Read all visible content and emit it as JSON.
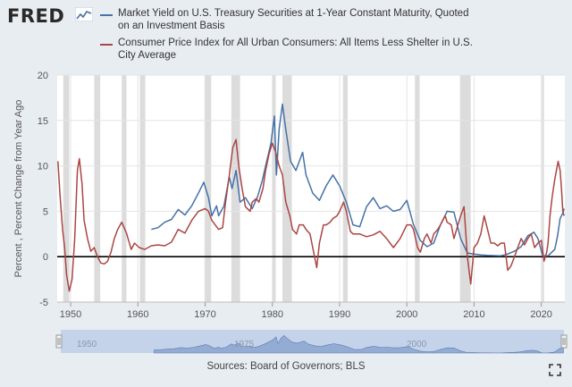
{
  "brand": {
    "logo_text": "FRED"
  },
  "colors": {
    "background": "#e8edf2",
    "blue": "#4572a7",
    "red": "#aa4643",
    "recession": "#dcdcdc",
    "navigator": "#c4d3ea"
  },
  "legend": [
    {
      "name": "Market Yield on U.S. Treasury Securities at 1-Year Constant Maturity, Quoted on an Investment Basis",
      "color": "#4572a7"
    },
    {
      "name": "Consumer Price Index for All Urban Consumers: All Items Less Shelter in U.S. City Average",
      "color": "#aa4643"
    }
  ],
  "footer": {
    "sources": "Sources: Board of Governors; BLS"
  },
  "navigator": {
    "tick_labels": [
      "1950",
      "1975",
      "2000"
    ]
  },
  "chart_data": {
    "type": "line",
    "ylabel": "Percent , Percent Change from Year Ago",
    "xlabel": "",
    "xlim": [
      1948,
      2023.5
    ],
    "ylim": [
      -5,
      20
    ],
    "y_ticks": [
      -5,
      0,
      5,
      10,
      15,
      20
    ],
    "x_ticks": [
      1950,
      1960,
      1970,
      1980,
      1990,
      2000,
      2010,
      2020
    ],
    "x_tick_labels": [
      "1950",
      "1960",
      "1970",
      "1980",
      "1990",
      "2000",
      "2010",
      "2020"
    ],
    "y_tick_labels": [
      "-5",
      "0",
      "5",
      "10",
      "15",
      "20"
    ],
    "grid": true,
    "legend_position": "top",
    "recessions": [
      [
        1948.9,
        1949.8
      ],
      [
        1953.5,
        1954.4
      ],
      [
        1957.6,
        1958.3
      ],
      [
        1960.3,
        1961.1
      ],
      [
        1969.9,
        1970.9
      ],
      [
        1973.9,
        1975.2
      ],
      [
        1980.0,
        1980.5
      ],
      [
        1981.5,
        1982.9
      ],
      [
        1990.5,
        1991.2
      ],
      [
        2001.2,
        2001.9
      ],
      [
        2007.9,
        2009.5
      ],
      [
        2020.1,
        2020.4
      ]
    ],
    "series": [
      {
        "name": "Market Yield on U.S. Treasury Securities at 1-Year Constant Maturity, Quoted on an Investment Basis",
        "color": "#4572a7",
        "points": [
          [
            1962,
            3.0
          ],
          [
            1963,
            3.2
          ],
          [
            1964,
            3.8
          ],
          [
            1965,
            4.1
          ],
          [
            1966,
            5.2
          ],
          [
            1967,
            4.6
          ],
          [
            1968,
            5.6
          ],
          [
            1969,
            7.0
          ],
          [
            1969.8,
            8.2
          ],
          [
            1970.5,
            6.5
          ],
          [
            1971,
            4.5
          ],
          [
            1971.7,
            5.6
          ],
          [
            1972,
            4.5
          ],
          [
            1972.8,
            5.6
          ],
          [
            1973.6,
            8.8
          ],
          [
            1974,
            7.5
          ],
          [
            1974.6,
            9.5
          ],
          [
            1975.2,
            6.0
          ],
          [
            1976,
            6.5
          ],
          [
            1977,
            5.3
          ],
          [
            1977.8,
            6.6
          ],
          [
            1978.5,
            8.4
          ],
          [
            1979,
            10.0
          ],
          [
            1979.8,
            12.5
          ],
          [
            1980.3,
            15.5
          ],
          [
            1980.6,
            9.0
          ],
          [
            1981,
            14.0
          ],
          [
            1981.5,
            16.8
          ],
          [
            1982,
            14.0
          ],
          [
            1982.7,
            10.5
          ],
          [
            1983.5,
            9.5
          ],
          [
            1984.5,
            11.5
          ],
          [
            1985,
            9.0
          ],
          [
            1986,
            7.0
          ],
          [
            1987,
            6.2
          ],
          [
            1988,
            7.8
          ],
          [
            1989,
            9.0
          ],
          [
            1990,
            7.8
          ],
          [
            1991,
            6.0
          ],
          [
            1992,
            3.5
          ],
          [
            1993,
            3.3
          ],
          [
            1994,
            5.5
          ],
          [
            1995,
            6.5
          ],
          [
            1996,
            5.3
          ],
          [
            1997,
            5.6
          ],
          [
            1998,
            5.0
          ],
          [
            1999,
            5.2
          ],
          [
            2000,
            6.2
          ],
          [
            2001,
            3.5
          ],
          [
            2002,
            1.8
          ],
          [
            2003,
            1.1
          ],
          [
            2004,
            1.5
          ],
          [
            2005,
            3.5
          ],
          [
            2006,
            5.0
          ],
          [
            2007,
            4.9
          ],
          [
            2008,
            2.0
          ],
          [
            2009,
            0.4
          ],
          [
            2010,
            0.3
          ],
          [
            2011,
            0.2
          ],
          [
            2012,
            0.15
          ],
          [
            2013,
            0.12
          ],
          [
            2014,
            0.1
          ],
          [
            2015,
            0.3
          ],
          [
            2016,
            0.6
          ],
          [
            2017,
            1.1
          ],
          [
            2018,
            2.3
          ],
          [
            2018.9,
            2.7
          ],
          [
            2019.5,
            2.0
          ],
          [
            2020.2,
            0.1
          ],
          [
            2021,
            0.1
          ],
          [
            2022,
            0.8
          ],
          [
            2022.4,
            2.2
          ],
          [
            2022.8,
            4.2
          ],
          [
            2023.2,
            4.8
          ],
          [
            2023.4,
            5.3
          ]
        ]
      },
      {
        "name": "Consumer Price Index for All Urban Consumers: All Items Less Shelter in U.S. City Average",
        "color": "#aa4643",
        "points": [
          [
            1948.1,
            10.5
          ],
          [
            1948.4,
            7.0
          ],
          [
            1948.8,
            3.0
          ],
          [
            1949.1,
            1.0
          ],
          [
            1949.4,
            -2.0
          ],
          [
            1949.8,
            -3.8
          ],
          [
            1950.2,
            -2.5
          ],
          [
            1950.6,
            2.0
          ],
          [
            1951.0,
            9.5
          ],
          [
            1951.3,
            10.8
          ],
          [
            1951.7,
            8.0
          ],
          [
            1952.0,
            4.0
          ],
          [
            1952.5,
            2.0
          ],
          [
            1953.0,
            0.6
          ],
          [
            1953.5,
            1.0
          ],
          [
            1954.0,
            0.0
          ],
          [
            1954.5,
            -0.7
          ],
          [
            1955.0,
            -0.8
          ],
          [
            1955.5,
            -0.5
          ],
          [
            1956.0,
            0.5
          ],
          [
            1956.5,
            2.0
          ],
          [
            1957.0,
            3.0
          ],
          [
            1957.6,
            3.8
          ],
          [
            1958.3,
            2.6
          ],
          [
            1959.0,
            0.8
          ],
          [
            1959.5,
            1.5
          ],
          [
            1960.2,
            1.0
          ],
          [
            1961.0,
            0.8
          ],
          [
            1962.0,
            1.2
          ],
          [
            1963.0,
            1.3
          ],
          [
            1964.0,
            1.2
          ],
          [
            1965.0,
            1.6
          ],
          [
            1966.0,
            3.0
          ],
          [
            1967.0,
            2.6
          ],
          [
            1968.0,
            4.0
          ],
          [
            1969.0,
            5.0
          ],
          [
            1970.0,
            5.3
          ],
          [
            1970.5,
            5.0
          ],
          [
            1971.0,
            4.0
          ],
          [
            1972.0,
            3.0
          ],
          [
            1972.6,
            3.2
          ],
          [
            1973.0,
            5.8
          ],
          [
            1973.6,
            9.0
          ],
          [
            1974.1,
            12.0
          ],
          [
            1974.6,
            12.9
          ],
          [
            1975.0,
            10.0
          ],
          [
            1975.5,
            7.5
          ],
          [
            1976.0,
            5.5
          ],
          [
            1976.7,
            5.0
          ],
          [
            1977.0,
            6.0
          ],
          [
            1977.6,
            6.4
          ],
          [
            1978.0,
            6.0
          ],
          [
            1978.6,
            7.5
          ],
          [
            1979.0,
            9.5
          ],
          [
            1979.5,
            11.3
          ],
          [
            1980.0,
            12.5
          ],
          [
            1980.5,
            11.5
          ],
          [
            1981.0,
            10.0
          ],
          [
            1981.5,
            9.0
          ],
          [
            1982.0,
            6.0
          ],
          [
            1982.6,
            4.5
          ],
          [
            1983.0,
            3.0
          ],
          [
            1983.6,
            2.5
          ],
          [
            1984.0,
            3.5
          ],
          [
            1984.6,
            3.5
          ],
          [
            1985.0,
            3.0
          ],
          [
            1985.6,
            2.5
          ],
          [
            1986.0,
            1.0
          ],
          [
            1986.6,
            -1.2
          ],
          [
            1987.0,
            1.5
          ],
          [
            1987.6,
            3.5
          ],
          [
            1988.0,
            3.5
          ],
          [
            1988.6,
            3.8
          ],
          [
            1989.0,
            4.2
          ],
          [
            1989.6,
            4.5
          ],
          [
            1990.0,
            5.0
          ],
          [
            1990.6,
            6.0
          ],
          [
            1991.0,
            5.0
          ],
          [
            1991.6,
            2.8
          ],
          [
            1992.0,
            2.5
          ],
          [
            1992.6,
            2.5
          ],
          [
            1993.0,
            2.5
          ],
          [
            1994.0,
            2.2
          ],
          [
            1995.0,
            2.4
          ],
          [
            1996.0,
            2.8
          ],
          [
            1997.0,
            2.0
          ],
          [
            1998.0,
            1.0
          ],
          [
            1999.0,
            2.0
          ],
          [
            2000.0,
            3.5
          ],
          [
            2000.6,
            3.5
          ],
          [
            2001.0,
            3.0
          ],
          [
            2001.6,
            1.0
          ],
          [
            2002.0,
            0.5
          ],
          [
            2002.6,
            2.0
          ],
          [
            2003.0,
            2.5
          ],
          [
            2003.6,
            1.5
          ],
          [
            2004.0,
            2.5
          ],
          [
            2004.6,
            3.0
          ],
          [
            2005.0,
            3.5
          ],
          [
            2005.7,
            4.5
          ],
          [
            2006.0,
            3.8
          ],
          [
            2006.6,
            3.5
          ],
          [
            2007.0,
            2.0
          ],
          [
            2007.6,
            3.5
          ],
          [
            2008.0,
            4.5
          ],
          [
            2008.5,
            5.5
          ],
          [
            2009.0,
            0.0
          ],
          [
            2009.5,
            -3.0
          ],
          [
            2010.0,
            1.0
          ],
          [
            2010.5,
            1.5
          ],
          [
            2011.0,
            2.5
          ],
          [
            2011.5,
            4.5
          ],
          [
            2012.0,
            3.0
          ],
          [
            2012.5,
            1.5
          ],
          [
            2013.0,
            1.5
          ],
          [
            2013.5,
            1.2
          ],
          [
            2014.0,
            1.5
          ],
          [
            2014.5,
            1.5
          ],
          [
            2015.0,
            -1.5
          ],
          [
            2015.5,
            -1.0
          ],
          [
            2016.0,
            0.0
          ],
          [
            2016.5,
            1.0
          ],
          [
            2017.0,
            2.0
          ],
          [
            2017.5,
            1.3
          ],
          [
            2018.0,
            2.0
          ],
          [
            2018.5,
            2.5
          ],
          [
            2019.0,
            1.0
          ],
          [
            2019.5,
            1.5
          ],
          [
            2020.0,
            1.8
          ],
          [
            2020.4,
            -0.5
          ],
          [
            2020.8,
            0.5
          ],
          [
            2021.0,
            1.5
          ],
          [
            2021.3,
            4.5
          ],
          [
            2021.6,
            6.5
          ],
          [
            2022.0,
            8.5
          ],
          [
            2022.5,
            10.5
          ],
          [
            2022.8,
            9.5
          ],
          [
            2023.0,
            7.5
          ],
          [
            2023.2,
            5.0
          ],
          [
            2023.4,
            4.5
          ]
        ]
      }
    ]
  }
}
